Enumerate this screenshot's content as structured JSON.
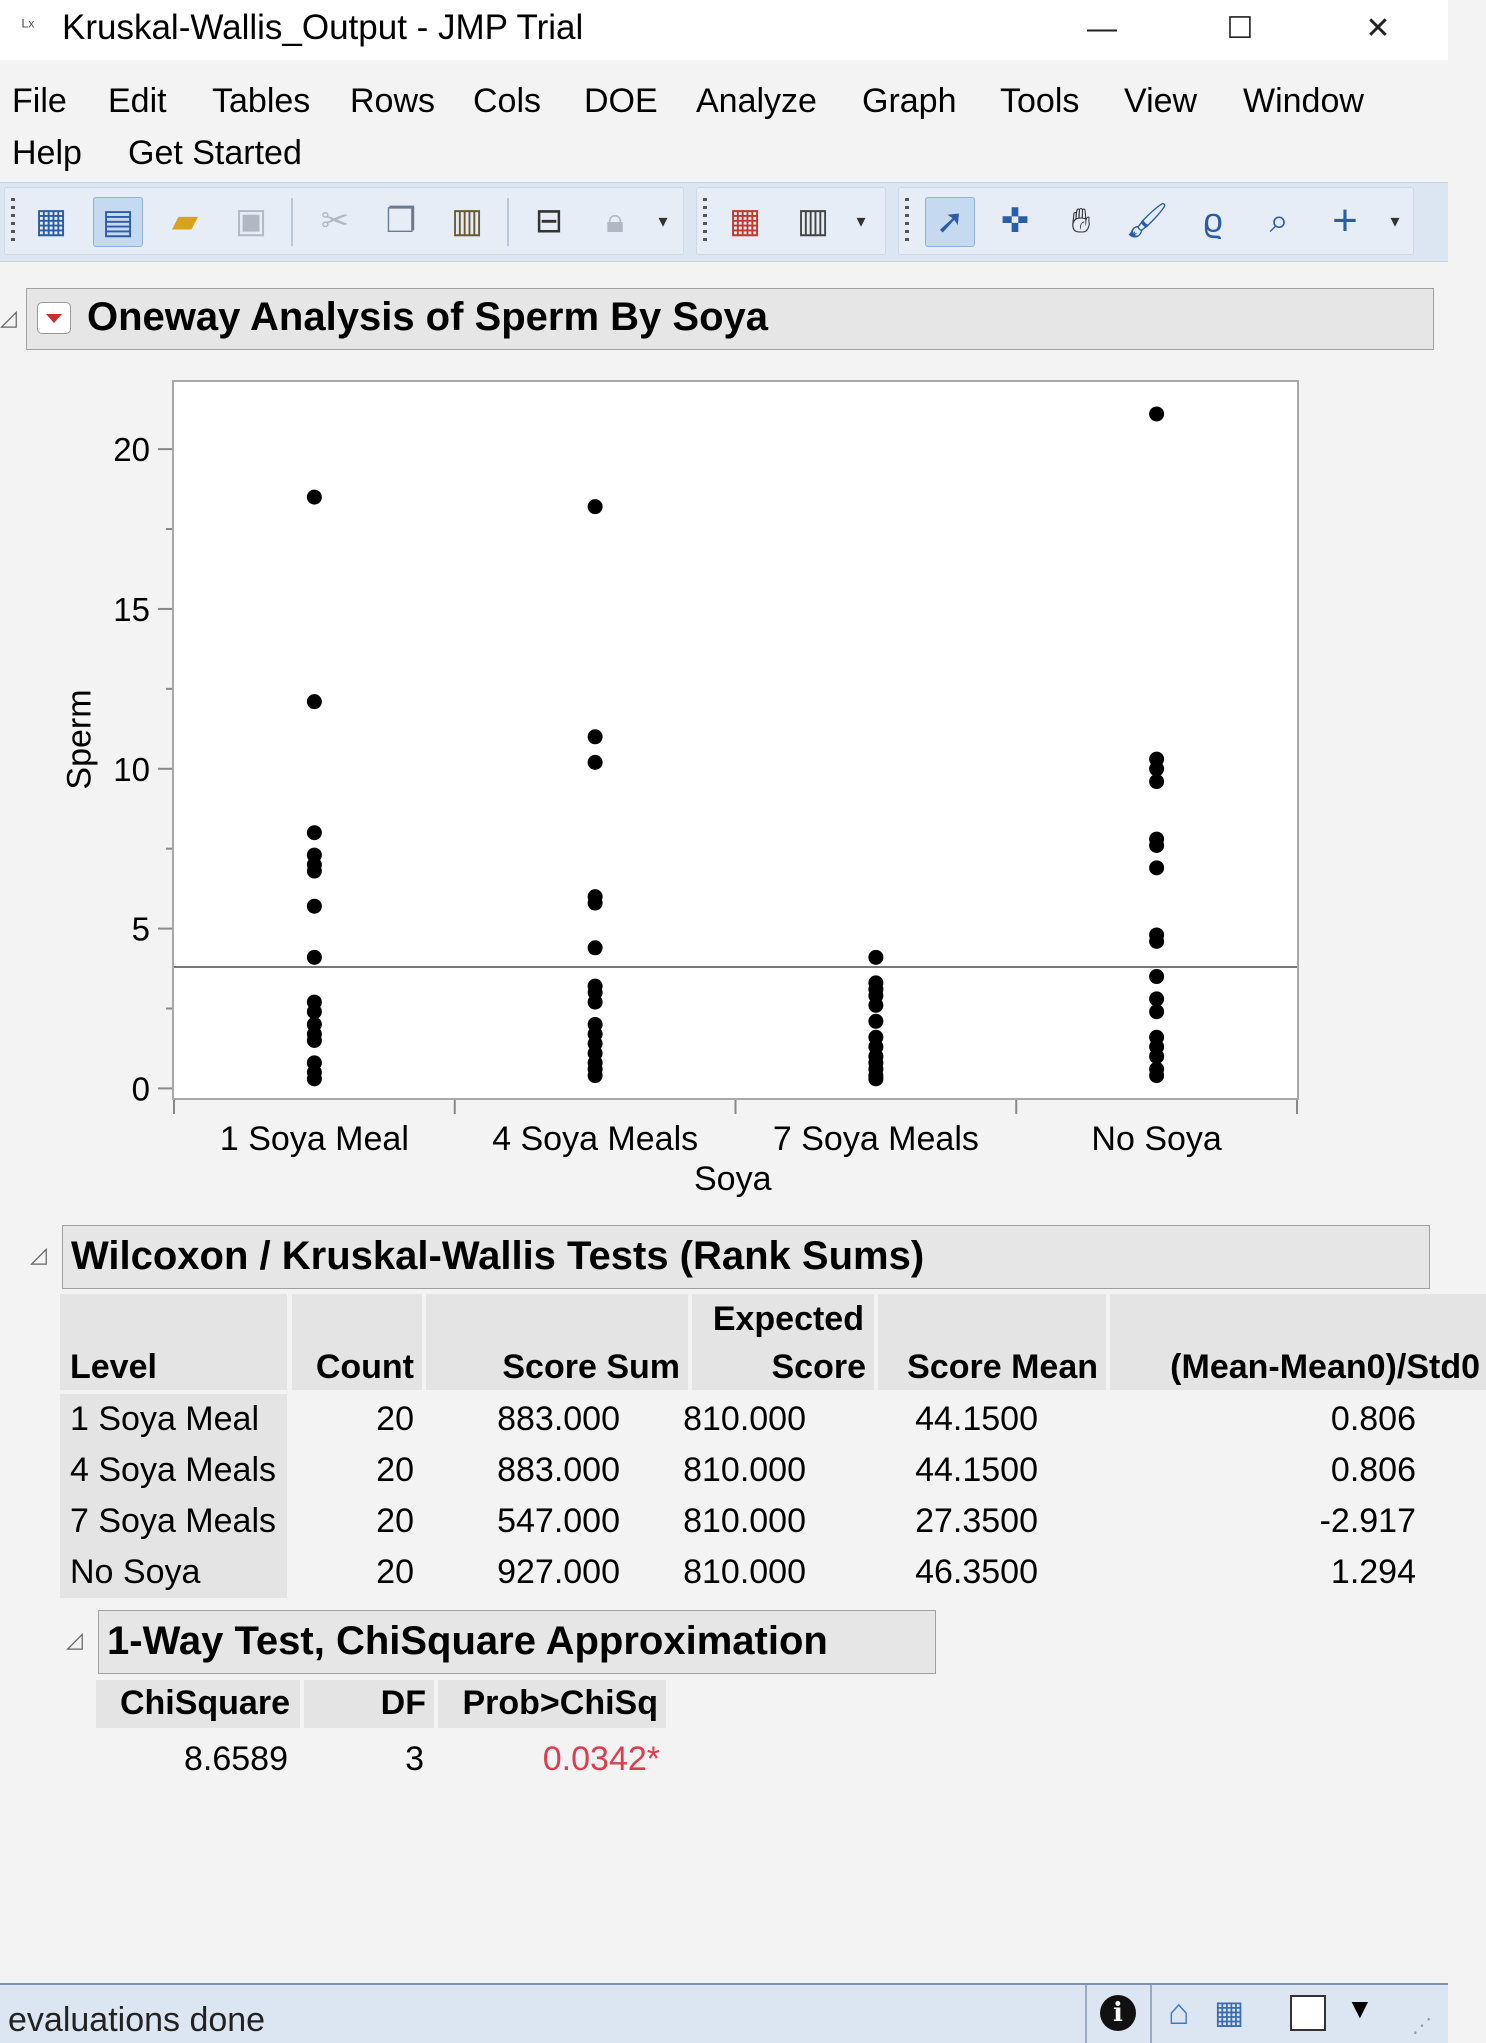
{
  "window": {
    "title": "Kruskal-Wallis_Output - JMP Trial",
    "app_icon": "jmp-icon"
  },
  "menu": [
    "File",
    "Edit",
    "Tables",
    "Rows",
    "Cols",
    "DOE",
    "Analyze",
    "Graph",
    "Tools",
    "View",
    "Window",
    "Help",
    "Get Started"
  ],
  "report": {
    "title": "Oneway Analysis of Sperm By Soya",
    "wilcoxon": {
      "title": "Wilcoxon / Kruskal-Wallis Tests (Rank Sums)",
      "headers": [
        "Level",
        "Count",
        "Score Sum",
        "Expected",
        "Score",
        "Score Mean",
        "(Mean-Mean0)/Std0"
      ],
      "rows": [
        [
          "1 Soya Meal",
          "20",
          "883.000",
          "810.000",
          "44.1500",
          "0.806"
        ],
        [
          "4 Soya Meals",
          "20",
          "883.000",
          "810.000",
          "44.1500",
          "0.806"
        ],
        [
          "7 Soya Meals",
          "20",
          "547.000",
          "810.000",
          "27.3500",
          "-2.917"
        ],
        [
          "No Soya",
          "20",
          "927.000",
          "810.000",
          "46.3500",
          "1.294"
        ]
      ]
    },
    "chisq": {
      "title": "1-Way Test, ChiSquare Approximation",
      "headers": [
        "ChiSquare",
        "DF",
        "Prob>ChiSq"
      ],
      "values": [
        "8.6589",
        "3",
        "0.0342*"
      ],
      "significant_color": "#e03c4c"
    }
  },
  "chart_data": {
    "type": "scatter",
    "xlabel": "Soya",
    "ylabel": "Sperm",
    "categories": [
      "1 Soya Meal",
      "4 Soya Meals",
      "7 Soya Meals",
      "No Soya"
    ],
    "ylim": [
      -0.3,
      22.1
    ],
    "yticks": [
      0,
      5,
      10,
      15,
      20
    ],
    "grand_mean": 3.8,
    "series": [
      {
        "category": "1 Soya Meal",
        "values": [
          18.5,
          12.1,
          8.0,
          7.3,
          7.0,
          6.8,
          5.7,
          4.1,
          2.7,
          2.4,
          2.0,
          1.7,
          1.5,
          0.8,
          0.5,
          0.3
        ]
      },
      {
        "category": "4 Soya Meals",
        "values": [
          18.2,
          11.0,
          10.2,
          6.0,
          5.8,
          4.4,
          3.2,
          3.0,
          2.7,
          2.0,
          1.7,
          1.4,
          1.1,
          0.8,
          0.6,
          0.4
        ]
      },
      {
        "category": "7 Soya Meals",
        "values": [
          4.1,
          3.3,
          3.1,
          2.9,
          2.6,
          2.1,
          1.6,
          1.3,
          1.0,
          0.8,
          0.6,
          0.4,
          0.3
        ]
      },
      {
        "category": "No Soya",
        "values": [
          21.1,
          10.3,
          10.0,
          9.6,
          7.8,
          7.6,
          6.9,
          4.8,
          4.6,
          3.5,
          2.8,
          2.4,
          1.6,
          1.3,
          1.0,
          0.6,
          0.4
        ]
      }
    ]
  },
  "status": {
    "text": "evaluations done"
  }
}
